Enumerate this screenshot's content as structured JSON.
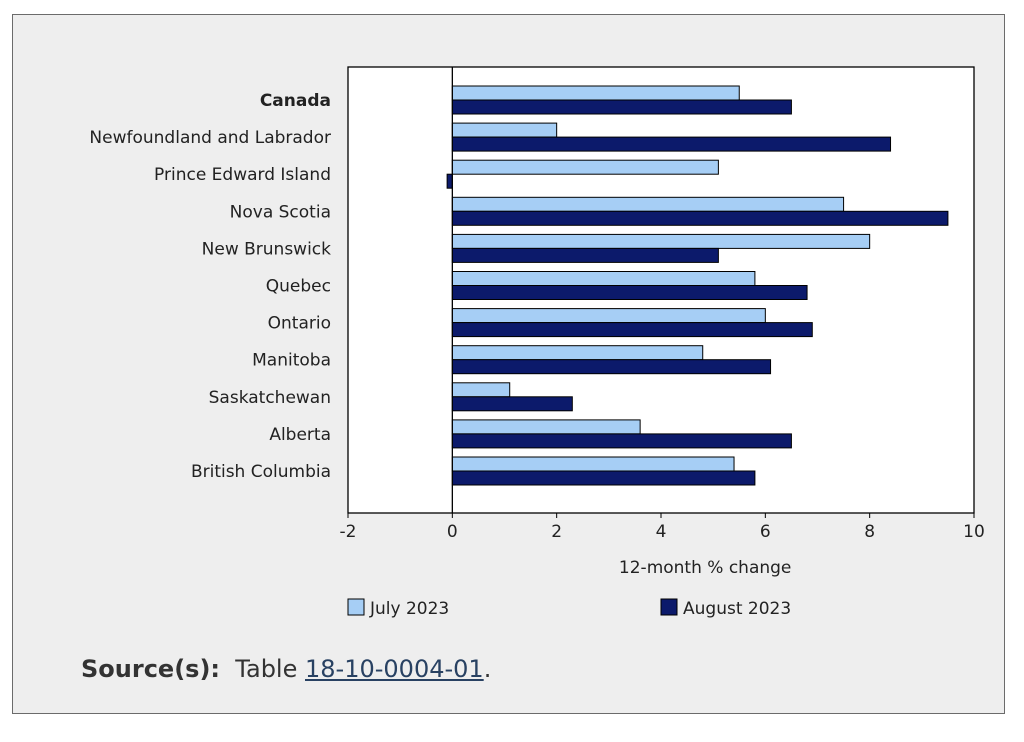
{
  "chart_data": {
    "type": "bar",
    "orientation": "horizontal",
    "xlabel": "12-month % change",
    "xlim": [
      -2,
      10
    ],
    "xticks": [
      "-2",
      "0",
      "2",
      "4",
      "6",
      "8",
      "10"
    ],
    "categories": [
      "Canada",
      "Newfoundland and Labrador",
      "Prince Edward Island",
      "Nova Scotia",
      "New Brunswick",
      "Quebec",
      "Ontario",
      "Manitoba",
      "Saskatchewan",
      "Alberta",
      "British Columbia"
    ],
    "bold_categories": [
      "Canada"
    ],
    "series": [
      {
        "name": "July 2023",
        "color": "#a6cef5",
        "values": [
          5.5,
          2.0,
          5.1,
          7.5,
          8.0,
          5.8,
          6.0,
          4.8,
          1.1,
          3.6,
          5.4
        ]
      },
      {
        "name": "August 2023",
        "color": "#0c1a6b",
        "values": [
          6.5,
          8.4,
          -0.1,
          9.5,
          5.1,
          6.8,
          6.9,
          6.1,
          2.3,
          6.5,
          5.8
        ]
      }
    ],
    "legend_position": "bottom"
  },
  "source": {
    "label": "Source(s):",
    "prefix": "Table",
    "link_text": "18-10-0004-01",
    "suffix": "."
  }
}
